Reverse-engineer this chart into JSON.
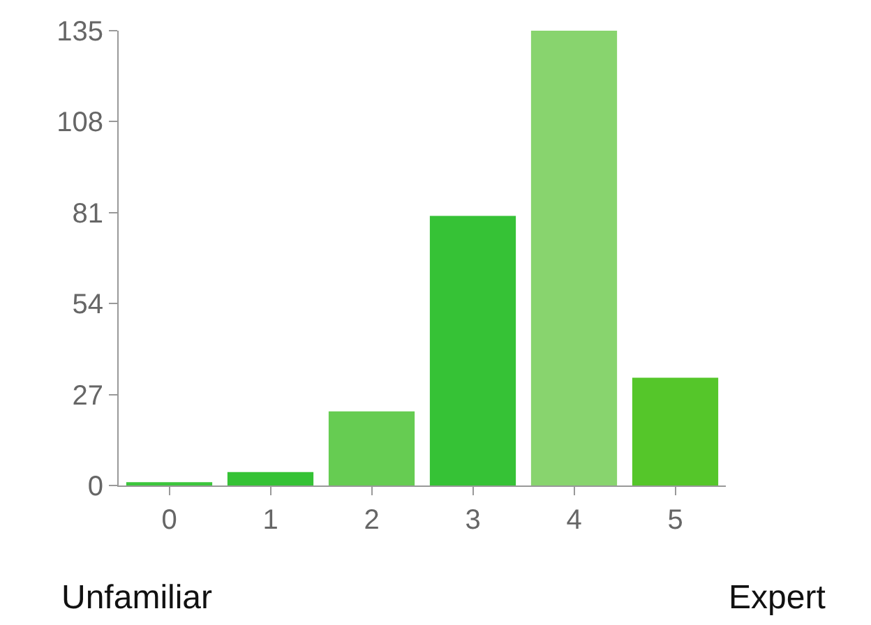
{
  "chart_data": {
    "type": "bar",
    "categories": [
      "0",
      "1",
      "2",
      "3",
      "4",
      "5"
    ],
    "values": [
      1,
      4,
      22,
      80,
      135,
      32
    ],
    "colors": [
      "#3cc63c",
      "#35c235",
      "#66cc52",
      "#36c236",
      "#88d46e",
      "#55c62a"
    ],
    "ylim": [
      0,
      135
    ],
    "yticks": [
      0,
      27,
      54,
      81,
      108,
      135
    ],
    "annotations": [
      "Unfamiliar",
      "Expert"
    ]
  }
}
